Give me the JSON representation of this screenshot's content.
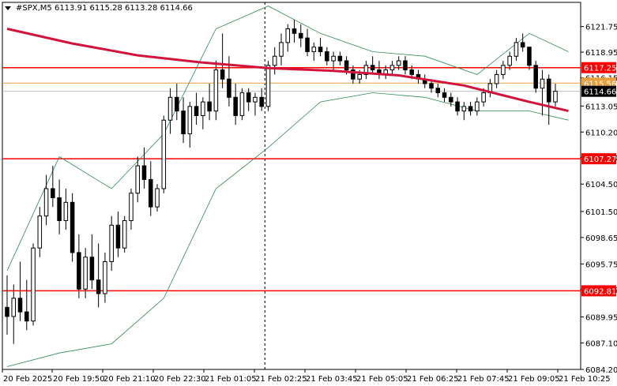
{
  "header": {
    "symbol": "#SPX,M5",
    "ohlc": "6113.91 6115.28 6113.28 6114.66"
  },
  "colors": {
    "background": "#ffffff",
    "axis": "#000000",
    "candle": "#000000",
    "ma": "#d2143c",
    "bands": "#2e8b57",
    "level": "#ff0000",
    "orange_line": "#e8a040",
    "price_line": "#c0c0c0"
  },
  "chart_data": {
    "type": "candlestick",
    "ylim": [
      6084.2,
      6124.4
    ],
    "y_ticks": [
      "6121.75",
      "6118.95",
      "6116.15",
      "6113.05",
      "6110.20",
      "6107.40",
      "6104.50",
      "6101.50",
      "6098.65",
      "6095.75",
      "6092.95",
      "6089.95",
      "6087.10",
      "6084.20"
    ],
    "x_ticks": [
      "20 Feb 2025",
      "20 Feb 19:50",
      "20 Feb 21:10",
      "20 Feb 22:30",
      "21 Feb 01:05",
      "21 Feb 02:25",
      "21 Feb 03:45",
      "21 Feb 05:05",
      "21 Feb 06:25",
      "21 Feb 07:45",
      "21 Feb 09:05",
      "21 Feb 10:25"
    ],
    "levels": [
      {
        "label": "6117.25",
        "value": 6117.25
      },
      {
        "label": "6107.27",
        "value": 6107.27
      },
      {
        "label": "6092.81",
        "value": 6092.81
      }
    ],
    "orange_level": {
      "label": "6115.56",
      "value": 6115.56
    },
    "current_price": {
      "label": "6114.66",
      "value": 6114.66
    },
    "session_divider_index": 40,
    "candles": [
      [
        6091.0,
        6094.5,
        6088.0,
        6090.0
      ],
      [
        6090.0,
        6093.5,
        6087.0,
        6092.0
      ],
      [
        6092.0,
        6096.0,
        6089.5,
        6090.5
      ],
      [
        6090.5,
        6094.0,
        6088.5,
        6089.5
      ],
      [
        6089.5,
        6098.0,
        6089.0,
        6097.5
      ],
      [
        6097.5,
        6102.0,
        6096.5,
        6101.0
      ],
      [
        6101.0,
        6105.5,
        6100.0,
        6104.0
      ],
      [
        6104.0,
        6106.5,
        6102.0,
        6103.0
      ],
      [
        6103.0,
        6105.0,
        6099.0,
        6100.5
      ],
      [
        6100.5,
        6104.0,
        6099.5,
        6102.5
      ],
      [
        6102.5,
        6103.5,
        6096.0,
        6097.0
      ],
      [
        6097.0,
        6099.0,
        6092.0,
        6093.0
      ],
      [
        6093.0,
        6097.5,
        6092.0,
        6096.5
      ],
      [
        6096.5,
        6099.0,
        6093.0,
        6094.0
      ],
      [
        6094.0,
        6098.0,
        6091.0,
        6092.5
      ],
      [
        6092.5,
        6097.0,
        6091.5,
        6096.0
      ],
      [
        6096.0,
        6101.0,
        6095.0,
        6100.0
      ],
      [
        6100.0,
        6101.5,
        6096.5,
        6097.5
      ],
      [
        6097.5,
        6101.0,
        6097.0,
        6100.5
      ],
      [
        6100.5,
        6104.0,
        6099.5,
        6103.5
      ],
      [
        6103.5,
        6107.5,
        6102.5,
        6106.5
      ],
      [
        6106.5,
        6108.5,
        6104.0,
        6105.0
      ],
      [
        6105.0,
        6107.0,
        6101.0,
        6102.0
      ],
      [
        6102.0,
        6104.5,
        6101.5,
        6104.0
      ],
      [
        6104.0,
        6112.0,
        6103.5,
        6111.5
      ],
      [
        6111.5,
        6115.0,
        6110.0,
        6114.0
      ],
      [
        6114.0,
        6115.5,
        6111.5,
        6112.5
      ],
      [
        6112.5,
        6114.0,
        6109.0,
        6110.0
      ],
      [
        6110.0,
        6113.5,
        6108.5,
        6113.0
      ],
      [
        6113.0,
        6114.5,
        6111.0,
        6112.0
      ],
      [
        6112.0,
        6114.0,
        6110.5,
        6113.5
      ],
      [
        6113.5,
        6115.5,
        6111.5,
        6112.5
      ],
      [
        6112.5,
        6118.0,
        6111.5,
        6117.0
      ],
      [
        6117.0,
        6121.0,
        6115.0,
        6116.0
      ],
      [
        6116.0,
        6118.5,
        6113.0,
        6114.0
      ],
      [
        6114.0,
        6115.5,
        6111.0,
        6112.0
      ],
      [
        6112.0,
        6115.0,
        6111.5,
        6114.5
      ],
      [
        6114.5,
        6115.0,
        6112.5,
        6113.5
      ],
      [
        6113.5,
        6114.5,
        6112.0,
        6114.0
      ],
      [
        6114.0,
        6115.0,
        6112.5,
        6113.0
      ],
      [
        6113.0,
        6118.0,
        6112.5,
        6117.5
      ],
      [
        6117.5,
        6119.5,
        6116.5,
        6118.5
      ],
      [
        6118.5,
        6121.0,
        6117.5,
        6120.0
      ],
      [
        6120.0,
        6122.0,
        6119.0,
        6121.5
      ],
      [
        6121.5,
        6122.5,
        6120.0,
        6121.0
      ],
      [
        6121.0,
        6122.0,
        6119.5,
        6120.5
      ],
      [
        6120.5,
        6121.5,
        6118.5,
        6119.0
      ],
      [
        6119.0,
        6120.0,
        6118.0,
        6119.5
      ],
      [
        6119.5,
        6120.5,
        6118.5,
        6119.0
      ],
      [
        6119.0,
        6119.5,
        6117.5,
        6118.0
      ],
      [
        6118.0,
        6119.0,
        6117.0,
        6118.5
      ],
      [
        6118.5,
        6119.0,
        6117.5,
        6118.0
      ],
      [
        6118.0,
        6118.5,
        6116.5,
        6117.0
      ],
      [
        6117.0,
        6117.5,
        6115.5,
        6116.0
      ],
      [
        6116.0,
        6117.0,
        6115.5,
        6116.5
      ],
      [
        6116.5,
        6118.0,
        6116.0,
        6117.5
      ],
      [
        6117.5,
        6118.5,
        6116.5,
        6117.0
      ],
      [
        6117.0,
        6118.0,
        6116.0,
        6116.5
      ],
      [
        6116.5,
        6117.5,
        6116.0,
        6117.0
      ],
      [
        6117.0,
        6118.0,
        6116.5,
        6117.5
      ],
      [
        6117.5,
        6118.5,
        6117.0,
        6118.0
      ],
      [
        6118.0,
        6118.5,
        6116.5,
        6117.0
      ],
      [
        6117.0,
        6117.5,
        6116.0,
        6116.5
      ],
      [
        6116.5,
        6117.0,
        6115.5,
        6116.0
      ],
      [
        6116.0,
        6116.5,
        6115.0,
        6115.5
      ],
      [
        6115.5,
        6116.0,
        6114.5,
        6115.0
      ],
      [
        6115.0,
        6115.5,
        6114.0,
        6114.5
      ],
      [
        6114.5,
        6115.0,
        6113.5,
        6114.0
      ],
      [
        6114.0,
        6114.5,
        6113.0,
        6113.5
      ],
      [
        6113.5,
        6114.0,
        6112.0,
        6112.5
      ],
      [
        6112.5,
        6113.5,
        6111.5,
        6113.0
      ],
      [
        6113.0,
        6113.5,
        6112.0,
        6112.5
      ],
      [
        6112.5,
        6114.0,
        6112.0,
        6113.5
      ],
      [
        6113.5,
        6115.0,
        6113.0,
        6114.5
      ],
      [
        6114.5,
        6116.0,
        6114.0,
        6115.5
      ],
      [
        6115.5,
        6117.0,
        6115.0,
        6116.5
      ],
      [
        6116.5,
        6118.0,
        6116.0,
        6117.5
      ],
      [
        6117.5,
        6119.0,
        6117.0,
        6118.5
      ],
      [
        6118.5,
        6120.5,
        6118.0,
        6120.0
      ],
      [
        6120.0,
        6121.0,
        6119.0,
        6119.5
      ],
      [
        6119.5,
        6119.5,
        6117.0,
        6117.5
      ],
      [
        6117.5,
        6118.0,
        6114.5,
        6115.0
      ],
      [
        6115.0,
        6117.0,
        6112.0,
        6116.0
      ],
      [
        6116.0,
        6116.5,
        6111.0,
        6113.5
      ],
      [
        6113.5,
        6115.5,
        6113.0,
        6114.66
      ]
    ],
    "ma": [
      [
        0,
        6121.5
      ],
      [
        10,
        6119.9
      ],
      [
        20,
        6118.6
      ],
      [
        30,
        6117.8
      ],
      [
        40,
        6117.2
      ],
      [
        50,
        6116.9
      ],
      [
        60,
        6116.4
      ],
      [
        70,
        6115.3
      ],
      [
        80,
        6113.5
      ],
      [
        86,
        6112.5
      ]
    ],
    "band_upper": [
      [
        0,
        6095.0
      ],
      [
        8,
        6107.5
      ],
      [
        16,
        6104.0
      ],
      [
        24,
        6110.0
      ],
      [
        32,
        6121.5
      ],
      [
        40,
        6124.0
      ],
      [
        48,
        6121.0
      ],
      [
        56,
        6119.0
      ],
      [
        64,
        6118.5
      ],
      [
        72,
        6116.5
      ],
      [
        80,
        6121.0
      ],
      [
        86,
        6119.0
      ]
    ],
    "band_lower": [
      [
        0,
        6084.5
      ],
      [
        8,
        6086.0
      ],
      [
        16,
        6087.0
      ],
      [
        24,
        6092.0
      ],
      [
        32,
        6104.0
      ],
      [
        40,
        6108.5
      ],
      [
        48,
        6113.5
      ],
      [
        56,
        6114.5
      ],
      [
        64,
        6114.0
      ],
      [
        72,
        6112.5
      ],
      [
        80,
        6112.5
      ],
      [
        86,
        6111.5
      ]
    ]
  }
}
